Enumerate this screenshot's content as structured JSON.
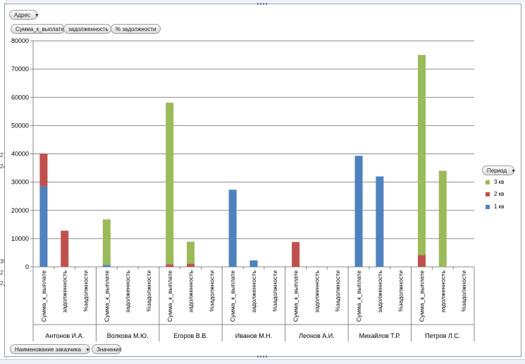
{
  "filters": {
    "page_field": "Адрес",
    "data_fields": [
      "Сумма_к_выплате",
      "задолженность",
      "% задолжности"
    ],
    "axis_field": "Наименование заказчика",
    "values_button": "Значения",
    "legend_field": "Период"
  },
  "chart_data": {
    "type": "bar",
    "stacked": true,
    "ylim": [
      0,
      80000
    ],
    "yticks": [
      0,
      10000,
      20000,
      30000,
      40000,
      50000,
      60000,
      70000,
      80000
    ],
    "groups": [
      "Антонов И.А.",
      "Волкова М.Ю.",
      "Егоров В.В.",
      "Иванов М.Н.",
      "Леонов А.И.",
      "Михайлов Т.Р.",
      "Петров Л.С."
    ],
    "subcategories": [
      "Сумма_к_выплате",
      "задолженность",
      "%задолжности"
    ],
    "series": [
      {
        "name": "1 кв",
        "color": "#4f81bd",
        "values": [
          28500,
          0,
          0,
          700,
          0,
          0,
          0,
          0,
          0,
          27300,
          2300,
          0,
          0,
          0,
          0,
          39300,
          32000,
          0,
          0,
          0,
          0
        ]
      },
      {
        "name": "2 кв",
        "color": "#c0504d",
        "values": [
          11500,
          12800,
          0,
          0,
          0,
          0,
          900,
          1100,
          0,
          0,
          0,
          0,
          8800,
          0,
          0,
          0,
          0,
          0,
          4200,
          0,
          0
        ]
      },
      {
        "name": "3 кв",
        "color": "#9bbb59",
        "values": [
          0,
          0,
          0,
          16100,
          0,
          0,
          57200,
          7800,
          0,
          0,
          0,
          0,
          0,
          0,
          0,
          0,
          0,
          0,
          70800,
          34000,
          0
        ]
      }
    ],
    "legend_order": [
      "3 кв",
      "2 кв",
      "1 кв"
    ],
    "legend_position": "right",
    "grid": true
  },
  "sheet_fragments": [
    "27",
    "24",
    "39",
    "21",
    "2,"
  ]
}
